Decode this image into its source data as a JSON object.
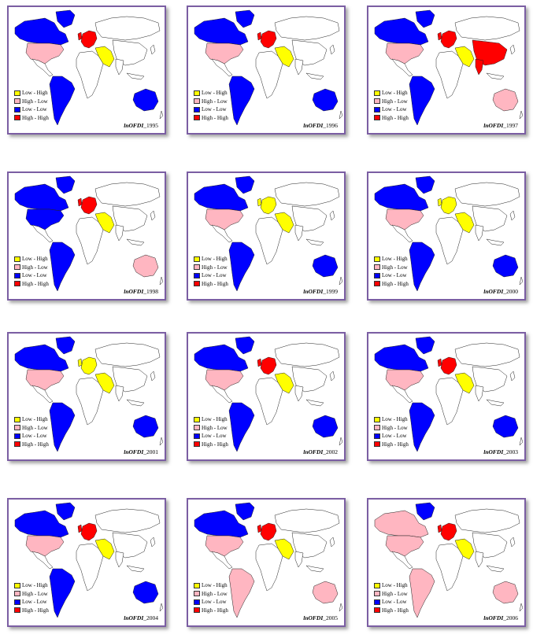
{
  "legend": [
    {
      "label": "Low - High",
      "color": "#ffff00"
    },
    {
      "label": "High - Low",
      "color": "#ffb6c1"
    },
    {
      "label": "Low - Low",
      "color": "#0000ff"
    },
    {
      "label": "High - High",
      "color": "#ff0000"
    }
  ],
  "variable": "lnOFDI",
  "panels": [
    {
      "year": "1995",
      "na": "#ffb6c1",
      "canada": "#0000ff",
      "sa": "#0000ff",
      "aus": "#0000ff",
      "eu": "#ff0000",
      "me": "#ffff00",
      "asia": "#ffffff"
    },
    {
      "year": "1996",
      "na": "#ffb6c1",
      "canada": "#0000ff",
      "sa": "#0000ff",
      "aus": "#0000ff",
      "eu": "#ff0000",
      "me": "#ffff00",
      "asia": "#ffffff"
    },
    {
      "year": "1997",
      "na": "#ffb6c1",
      "canada": "#0000ff",
      "sa": "#0000ff",
      "aus": "#ffb6c1",
      "eu": "#ff0000",
      "me": "#ffff00",
      "asia": "#ff0000"
    },
    {
      "year": "1998",
      "na": "#0000ff",
      "canada": "#0000ff",
      "sa": "#0000ff",
      "aus": "#ffb6c1",
      "eu": "#ff0000",
      "me": "#ffff00",
      "asia": "#ffffff"
    },
    {
      "year": "1999",
      "na": "#ffb6c1",
      "canada": "#0000ff",
      "sa": "#0000ff",
      "aus": "#0000ff",
      "eu": "#ffff00",
      "me": "#ffff00",
      "asia": "#ffffff"
    },
    {
      "year": "2000",
      "na": "#ffb6c1",
      "canada": "#0000ff",
      "sa": "#0000ff",
      "aus": "#0000ff",
      "eu": "#ffff00",
      "me": "#ffff00",
      "asia": "#ffffff"
    },
    {
      "year": "2001",
      "na": "#ffb6c1",
      "canada": "#0000ff",
      "sa": "#0000ff",
      "aus": "#0000ff",
      "eu": "#ffff00",
      "me": "#ffff00",
      "asia": "#ffffff"
    },
    {
      "year": "2002",
      "na": "#ffb6c1",
      "canada": "#0000ff",
      "sa": "#0000ff",
      "aus": "#0000ff",
      "eu": "#ff0000",
      "me": "#ffff00",
      "asia": "#ffffff"
    },
    {
      "year": "2003",
      "na": "#ffb6c1",
      "canada": "#0000ff",
      "sa": "#0000ff",
      "aus": "#0000ff",
      "eu": "#ff0000",
      "me": "#ffff00",
      "asia": "#ffffff"
    },
    {
      "year": "2004",
      "na": "#ffb6c1",
      "canada": "#0000ff",
      "sa": "#0000ff",
      "aus": "#0000ff",
      "eu": "#ff0000",
      "me": "#ffff00",
      "asia": "#ffffff"
    },
    {
      "year": "2005",
      "na": "#ffb6c1",
      "canada": "#0000ff",
      "sa": "#ffb6c1",
      "aus": "#ffb6c1",
      "eu": "#ff0000",
      "me": "#ffff00",
      "asia": "#ffffff"
    },
    {
      "year": "2006",
      "na": "#ffb6c1",
      "canada": "#ffb6c1",
      "sa": "#ffb6c1",
      "aus": "#ffb6c1",
      "eu": "#ff0000",
      "me": "#ffff00",
      "asia": "#ffffff"
    }
  ]
}
